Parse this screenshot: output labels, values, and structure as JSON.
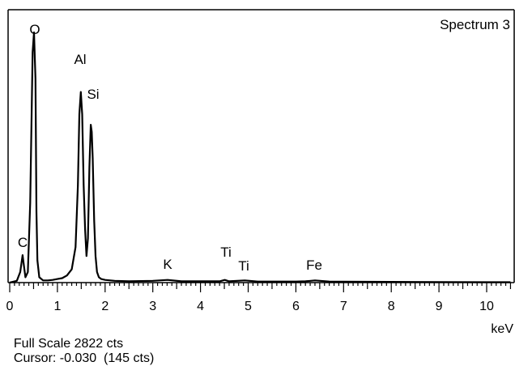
{
  "chart_data": {
    "type": "line",
    "title": "Spectrum 3",
    "xlabel": "keV",
    "ylabel": "",
    "xlim": [
      0,
      10.5
    ],
    "ylim": [
      0,
      2822
    ],
    "x_ticks": [
      0,
      1,
      2,
      3,
      4,
      5,
      6,
      7,
      8,
      9,
      10
    ],
    "grid": false,
    "series": [
      {
        "x": [
          0.0,
          0.15,
          0.22,
          0.27,
          0.3,
          0.33,
          0.38,
          0.43,
          0.48,
          0.51,
          0.54,
          0.56,
          0.58,
          0.62,
          0.7,
          0.8,
          0.9,
          1.0,
          1.1,
          1.2,
          1.3,
          1.38,
          1.43,
          1.46,
          1.49,
          1.52,
          1.55,
          1.58,
          1.61,
          1.64,
          1.67,
          1.7,
          1.72,
          1.74,
          1.77,
          1.8,
          1.83,
          1.87,
          1.92,
          2.0,
          2.2,
          2.5,
          3.0,
          3.31,
          3.6,
          4.0,
          4.4,
          4.51,
          4.6,
          4.93,
          5.2,
          5.6,
          6.0,
          6.2,
          6.4,
          6.7,
          7.0,
          8.0,
          9.0,
          10.0,
          10.5
        ],
        "y": [
          0,
          20,
          120,
          310,
          180,
          60,
          120,
          900,
          2600,
          2822,
          2300,
          800,
          250,
          60,
          25,
          25,
          30,
          40,
          50,
          80,
          150,
          400,
          1100,
          1900,
          2150,
          1900,
          1100,
          600,
          300,
          500,
          1300,
          1780,
          1700,
          1400,
          700,
          300,
          120,
          60,
          40,
          30,
          20,
          15,
          20,
          30,
          15,
          15,
          15,
          30,
          15,
          25,
          12,
          12,
          12,
          15,
          25,
          12,
          10,
          8,
          6,
          5,
          5
        ]
      }
    ],
    "annotations": [
      {
        "text": "C",
        "x": 0.27,
        "y": 310
      },
      {
        "text": "O",
        "x": 0.51,
        "y": 2822
      },
      {
        "text": "Al",
        "x": 1.49,
        "y": 2150
      },
      {
        "text": "Si",
        "x": 1.72,
        "y": 1780
      },
      {
        "text": "K",
        "x": 3.31,
        "y": 30
      },
      {
        "text": "Ti",
        "x": 4.51,
        "y": 30
      },
      {
        "text": "Ti",
        "x": 4.93,
        "y": 25
      },
      {
        "text": "Fe",
        "x": 6.4,
        "y": 25
      }
    ]
  },
  "footer": {
    "full_scale_label": "Full Scale 2822 cts",
    "cursor_label": "Cursor: -0.030  (145 cts)",
    "unit_label": "keV"
  }
}
